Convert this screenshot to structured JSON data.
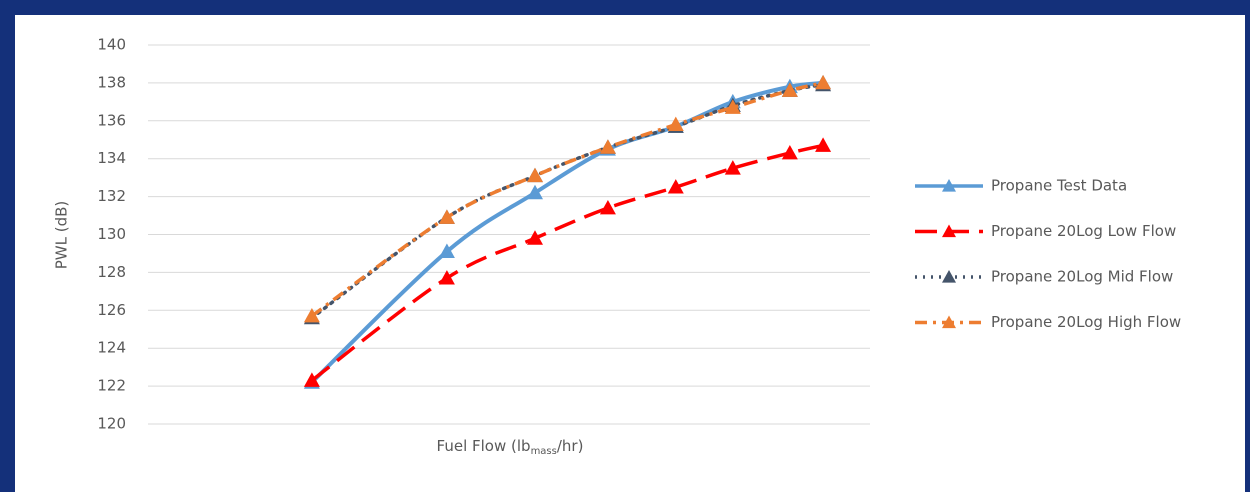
{
  "chart_data": {
    "type": "line",
    "y_label": "PWL (dB)",
    "x_label": {
      "text": "Fuel Flow (lb",
      "sub": "mass",
      "end": "/hr)"
    },
    "x": [
      22.7,
      41.4,
      53.6,
      63.7,
      73.1,
      81.0,
      88.9,
      93.5
    ],
    "xlim": [
      0,
      100
    ],
    "ylim": [
      120,
      140
    ],
    "yticks": [
      120,
      122,
      124,
      126,
      128,
      130,
      132,
      134,
      136,
      138,
      140
    ],
    "grid": true,
    "legend": "right",
    "series": [
      {
        "name": "Propane Test Data",
        "color": "#5b9bd5",
        "line_style": "solid",
        "values": [
          122.2,
          129.1,
          132.2,
          134.5,
          135.7,
          137.0,
          137.8,
          138.0
        ]
      },
      {
        "name": "Propane 20Log Low Flow",
        "color": "#ff0000",
        "line_style": "dash",
        "values": [
          122.3,
          127.7,
          129.8,
          131.4,
          132.5,
          133.5,
          134.3,
          134.7
        ]
      },
      {
        "name": "Propane 20Log Mid Flow",
        "color": "#44546a",
        "line_style": "dot",
        "values": [
          125.6,
          130.9,
          133.1,
          134.6,
          135.7,
          136.8,
          137.6,
          137.9
        ]
      },
      {
        "name": "Propane 20Log High Flow",
        "color": "#ed7d31",
        "line_style": "dashdot",
        "values": [
          125.7,
          130.9,
          133.1,
          134.6,
          135.8,
          136.7,
          137.6,
          138.0
        ]
      }
    ]
  }
}
